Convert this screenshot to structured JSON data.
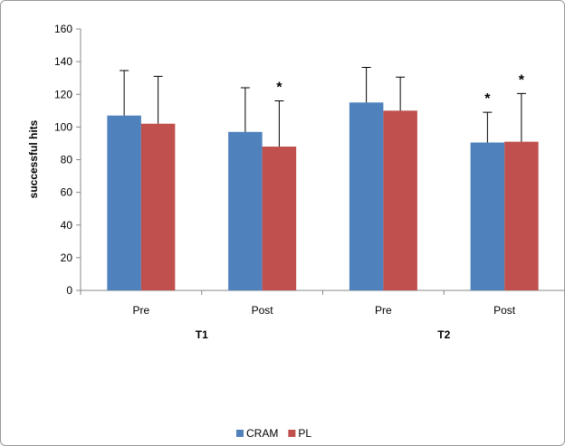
{
  "chart_data": {
    "type": "bar",
    "ylabel": "successful hits",
    "ylim": [
      0,
      160
    ],
    "yticks": [
      "0",
      "20",
      "40",
      "60",
      "80",
      "100",
      "120",
      "140",
      "160"
    ],
    "categories": [
      "Pre",
      "Post",
      "Pre",
      "Post"
    ],
    "groups": [
      {
        "label": "T1",
        "categories": [
          0,
          1
        ]
      },
      {
        "label": "T2",
        "categories": [
          2,
          3
        ]
      }
    ],
    "series": [
      {
        "name": "CRAM",
        "color": "#4F81BD",
        "values": [
          107,
          97,
          115,
          90.5
        ],
        "errors": [
          27.5,
          27,
          21.5,
          18.5
        ],
        "significance": [
          "",
          "",
          "",
          "*"
        ]
      },
      {
        "name": "PL",
        "color": "#C0504D",
        "values": [
          102,
          88,
          110,
          91
        ],
        "errors": [
          29,
          28,
          20.5,
          29.5
        ],
        "significance": [
          "",
          "*",
          "",
          "*"
        ]
      }
    ],
    "legend": "bottom",
    "grid": false
  }
}
